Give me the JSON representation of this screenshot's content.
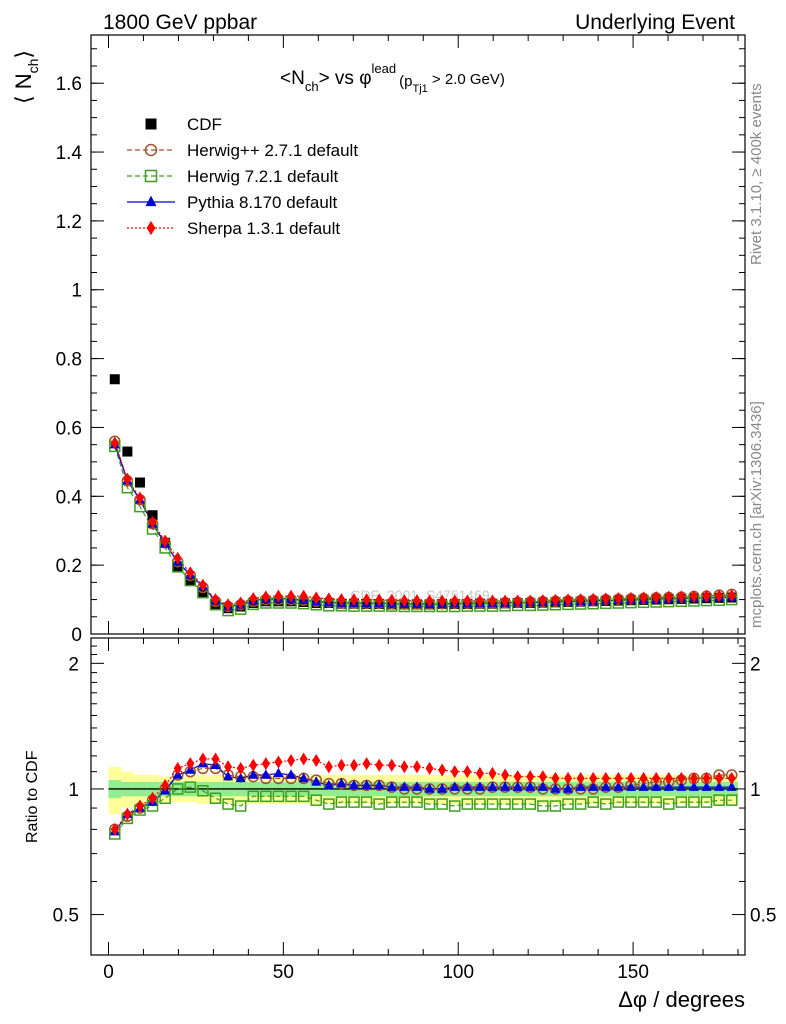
{
  "header": {
    "left": "1800 GeV ppbar",
    "right": "Underlying Event"
  },
  "side_text": {
    "top": "Rivet 3.1.10, ≥ 400k events",
    "bottom": "mcplots.cern.ch [arXiv:1306.3436]"
  },
  "watermark": "CDF_2001_S4751469",
  "chart_data": [
    {
      "type": "scatter",
      "title": "<N_ch> vs φ^lead (p_Tj1 > 2.0 GeV)",
      "title_parts": {
        "main": "<N",
        "sub1": "ch",
        "mid": "> vs φ",
        "sup": "lead",
        "paren_open": "(p",
        "sub2": "Tj1",
        "paren_close": " > 2.0 GeV)"
      },
      "ylabel": "⟨ N_ch ⟩",
      "ylabel_parts": {
        "main": "⟨ N",
        "sub": "ch",
        "close": "⟩"
      },
      "xlim": [
        -5,
        182
      ],
      "ylim": [
        0,
        1.74
      ],
      "yticks": [
        "0",
        "0.2",
        "0.4",
        "0.6",
        "0.8",
        "1",
        "1.2",
        "1.4",
        "1.6"
      ],
      "yticks_values": [
        0,
        0.2,
        0.4,
        0.6,
        0.8,
        1.0,
        1.2,
        1.4,
        1.6
      ],
      "legend_placement": "top-left",
      "x": [
        1.8,
        5.4,
        9,
        12.6,
        16.2,
        19.8,
        23.4,
        27,
        30.6,
        34.2,
        37.8,
        41.4,
        45,
        48.6,
        52.2,
        55.8,
        59.4,
        63,
        66.6,
        70.2,
        73.8,
        77.4,
        81,
        84.6,
        88.2,
        91.8,
        95.4,
        99,
        102.6,
        106.2,
        109.8,
        113.4,
        117,
        120.6,
        124.2,
        127.8,
        131.4,
        135,
        138.6,
        142.2,
        145.8,
        149.4,
        153,
        156.6,
        160.2,
        163.8,
        167.4,
        171,
        174.6,
        178.2
      ],
      "series": [
        {
          "name": "CDF",
          "color": "#000000",
          "marker": "square-filled",
          "values": [
            0.74,
            0.53,
            0.44,
            0.345,
            0.265,
            0.195,
            0.155,
            0.12,
            0.085,
            0.075,
            0.08,
            0.09,
            0.095,
            0.095,
            0.095,
            0.093,
            0.09,
            0.09,
            0.088,
            0.088,
            0.087,
            0.087,
            0.086,
            0.086,
            0.086,
            0.086,
            0.087,
            0.087,
            0.087,
            0.088,
            0.088,
            0.089,
            0.09,
            0.09,
            0.091,
            0.092,
            0.093,
            0.094,
            0.095,
            0.096,
            0.097,
            0.098,
            0.099,
            0.1,
            0.101,
            0.102,
            0.103,
            0.104,
            0.105,
            0.106
          ]
        },
        {
          "name": "Herwig++ 2.7.1 default",
          "color": "#a0522d",
          "marker": "circle-open",
          "line": "dashed",
          "values": [
            0.56,
            0.445,
            0.39,
            0.32,
            0.265,
            0.21,
            0.17,
            0.135,
            0.095,
            0.08,
            0.085,
            0.095,
            0.1,
            0.1,
            0.1,
            0.098,
            0.095,
            0.093,
            0.09,
            0.09,
            0.089,
            0.089,
            0.088,
            0.087,
            0.087,
            0.087,
            0.088,
            0.089,
            0.089,
            0.09,
            0.09,
            0.091,
            0.092,
            0.093,
            0.094,
            0.095,
            0.096,
            0.097,
            0.098,
            0.1,
            0.101,
            0.102,
            0.103,
            0.105,
            0.106,
            0.107,
            0.109,
            0.11,
            0.113,
            0.115
          ]
        },
        {
          "name": "Herwig 7.2.1 default",
          "color": "#3f9e1f",
          "marker": "square-open",
          "line": "dashed",
          "values": [
            0.545,
            0.425,
            0.37,
            0.305,
            0.25,
            0.195,
            0.155,
            0.12,
            0.085,
            0.068,
            0.072,
            0.086,
            0.09,
            0.09,
            0.09,
            0.088,
            0.085,
            0.082,
            0.082,
            0.081,
            0.081,
            0.081,
            0.081,
            0.08,
            0.08,
            0.08,
            0.08,
            0.08,
            0.081,
            0.081,
            0.081,
            0.082,
            0.083,
            0.083,
            0.084,
            0.085,
            0.086,
            0.087,
            0.088,
            0.089,
            0.09,
            0.091,
            0.092,
            0.093,
            0.094,
            0.095,
            0.096,
            0.097,
            0.098,
            0.1
          ]
        },
        {
          "name": "Pythia 8.170 default",
          "color": "#0000dd",
          "marker": "triangle-filled",
          "line": "solid",
          "values": [
            0.55,
            0.445,
            0.39,
            0.32,
            0.262,
            0.21,
            0.172,
            0.138,
            0.097,
            0.08,
            0.085,
            0.097,
            0.102,
            0.103,
            0.102,
            0.098,
            0.094,
            0.091,
            0.09,
            0.09,
            0.089,
            0.089,
            0.088,
            0.087,
            0.087,
            0.086,
            0.087,
            0.088,
            0.088,
            0.089,
            0.089,
            0.09,
            0.091,
            0.091,
            0.092,
            0.093,
            0.094,
            0.095,
            0.096,
            0.097,
            0.098,
            0.099,
            0.1,
            0.101,
            0.102,
            0.103,
            0.104,
            0.105,
            0.106,
            0.107
          ]
        },
        {
          "name": "Sherpa 1.3.1 default",
          "color": "#ff0000",
          "marker": "diamond-filled",
          "line": "dotted",
          "values": [
            0.555,
            0.45,
            0.395,
            0.325,
            0.27,
            0.22,
            0.178,
            0.142,
            0.1,
            0.085,
            0.09,
            0.103,
            0.108,
            0.11,
            0.11,
            0.11,
            0.105,
            0.102,
            0.1,
            0.1,
            0.1,
            0.099,
            0.098,
            0.097,
            0.097,
            0.096,
            0.096,
            0.096,
            0.096,
            0.096,
            0.096,
            0.096,
            0.096,
            0.096,
            0.097,
            0.098,
            0.099,
            0.1,
            0.101,
            0.102,
            0.103,
            0.104,
            0.105,
            0.106,
            0.107,
            0.108,
            0.109,
            0.11,
            0.111,
            0.112
          ]
        }
      ]
    },
    {
      "type": "scatter",
      "ylabel": "Ratio to CDF",
      "xlabel": "Δφ / degrees",
      "xlim": [
        -5,
        182
      ],
      "ylim": [
        0.4,
        2.3
      ],
      "log_y": true,
      "yticks": [
        "0.5",
        "1",
        "2"
      ],
      "yticks_values": [
        0.5,
        1,
        2
      ],
      "xticks": [
        "0",
        "50",
        "100",
        "150"
      ],
      "xticks_values": [
        0,
        50,
        100,
        150
      ],
      "band_outer": {
        "color": "#ffff99",
        "halfwidth": [
          0.13,
          0.1,
          0.08,
          0.08,
          0.07,
          0.07,
          0.07,
          0.08,
          0.08,
          0.08,
          0.08,
          0.08,
          0.08,
          0.08,
          0.08,
          0.08,
          0.08,
          0.08,
          0.08,
          0.08,
          0.08,
          0.08,
          0.08,
          0.08,
          0.08,
          0.08,
          0.08,
          0.08,
          0.08,
          0.08,
          0.08,
          0.08,
          0.08,
          0.08,
          0.08,
          0.08,
          0.08,
          0.08,
          0.08,
          0.08,
          0.08,
          0.08,
          0.08,
          0.08,
          0.08,
          0.08,
          0.08,
          0.08,
          0.08,
          0.08
        ]
      },
      "band_inner": {
        "color": "#90ee90",
        "halfwidth": [
          0.05,
          0.04,
          0.04,
          0.04,
          0.04,
          0.04,
          0.04,
          0.04,
          0.04,
          0.04,
          0.04,
          0.04,
          0.04,
          0.04,
          0.04,
          0.04,
          0.04,
          0.04,
          0.04,
          0.04,
          0.04,
          0.04,
          0.04,
          0.04,
          0.04,
          0.04,
          0.04,
          0.04,
          0.04,
          0.04,
          0.04,
          0.04,
          0.04,
          0.04,
          0.04,
          0.04,
          0.04,
          0.04,
          0.04,
          0.04,
          0.04,
          0.04,
          0.04,
          0.04,
          0.04,
          0.04,
          0.04,
          0.04,
          0.04,
          0.04
        ]
      },
      "series": [
        {
          "name": "Herwig++ 2.7.1 default",
          "color": "#a0522d",
          "marker": "circle-open",
          "line": "dashed",
          "values": [
            0.8,
            0.86,
            0.9,
            0.94,
            1.0,
            1.08,
            1.1,
            1.12,
            1.12,
            1.08,
            1.07,
            1.07,
            1.06,
            1.06,
            1.06,
            1.06,
            1.05,
            1.03,
            1.03,
            1.02,
            1.02,
            1.02,
            1.01,
            1.0,
            1.0,
            1.0,
            1.0,
            1.0,
            1.0,
            1.0,
            1.01,
            1.01,
            1.01,
            1.01,
            1.0,
            1.0,
            1.0,
            1.0,
            1.0,
            1.01,
            1.01,
            1.02,
            1.03,
            1.04,
            1.04,
            1.05,
            1.06,
            1.06,
            1.08,
            1.08
          ]
        },
        {
          "name": "Herwig 7.2.1 default",
          "color": "#3f9e1f",
          "marker": "square-open",
          "line": "dashed",
          "values": [
            0.78,
            0.85,
            0.89,
            0.91,
            0.95,
            1.0,
            1.01,
            0.99,
            0.95,
            0.92,
            0.91,
            0.96,
            0.96,
            0.96,
            0.96,
            0.96,
            0.94,
            0.92,
            0.93,
            0.93,
            0.93,
            0.92,
            0.93,
            0.93,
            0.93,
            0.92,
            0.92,
            0.91,
            0.92,
            0.92,
            0.92,
            0.92,
            0.92,
            0.92,
            0.91,
            0.91,
            0.92,
            0.92,
            0.93,
            0.92,
            0.93,
            0.93,
            0.93,
            0.93,
            0.92,
            0.93,
            0.93,
            0.93,
            0.94,
            0.94
          ]
        },
        {
          "name": "Pythia 8.170 default",
          "color": "#0000dd",
          "marker": "triangle-filled",
          "line": "solid",
          "values": [
            0.79,
            0.87,
            0.9,
            0.93,
            0.99,
            1.08,
            1.11,
            1.15,
            1.14,
            1.07,
            1.06,
            1.08,
            1.08,
            1.09,
            1.08,
            1.06,
            1.04,
            1.02,
            1.03,
            1.02,
            1.02,
            1.02,
            1.01,
            1.01,
            1.01,
            1.0,
            1.0,
            1.01,
            1.01,
            1.01,
            1.01,
            1.01,
            1.01,
            1.01,
            1.01,
            1.0,
            1.0,
            1.01,
            1.01,
            1.01,
            1.01,
            1.01,
            1.01,
            1.01,
            1.01,
            1.01,
            1.01,
            1.01,
            1.01,
            1.01
          ]
        },
        {
          "name": "Sherpa 1.3.1 default",
          "color": "#ff0000",
          "marker": "diamond-filled",
          "line": "dotted",
          "values": [
            0.8,
            0.87,
            0.91,
            0.95,
            1.02,
            1.12,
            1.15,
            1.18,
            1.18,
            1.13,
            1.12,
            1.14,
            1.15,
            1.16,
            1.17,
            1.18,
            1.17,
            1.13,
            1.14,
            1.14,
            1.15,
            1.14,
            1.14,
            1.13,
            1.13,
            1.12,
            1.11,
            1.1,
            1.1,
            1.09,
            1.09,
            1.08,
            1.07,
            1.07,
            1.07,
            1.06,
            1.06,
            1.06,
            1.06,
            1.06,
            1.06,
            1.06,
            1.06,
            1.06,
            1.06,
            1.06,
            1.06,
            1.06,
            1.06,
            1.06
          ]
        }
      ]
    }
  ]
}
